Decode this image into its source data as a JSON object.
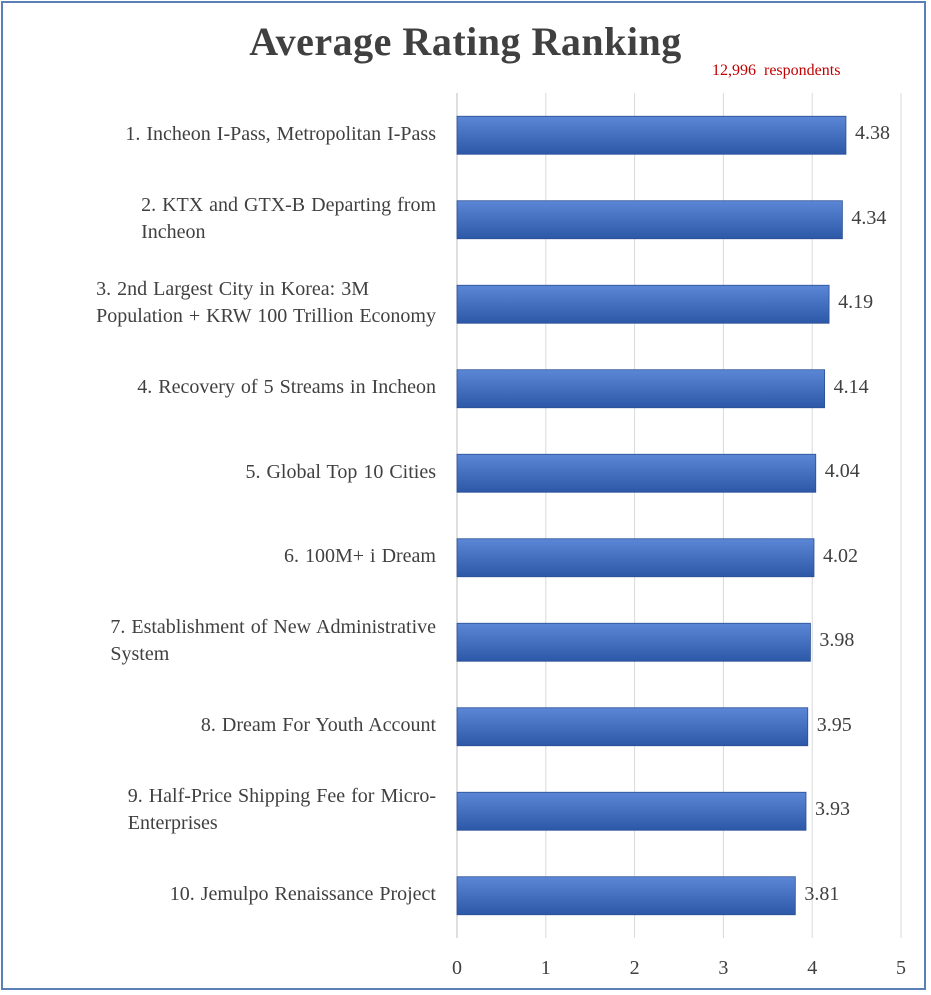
{
  "chart_data": {
    "type": "bar",
    "orientation": "horizontal",
    "title": "Average Rating Ranking",
    "annotation": "12,996  respondents",
    "categories": [
      "1. Incheon I-Pass, Metropolitan I-Pass",
      "2. KTX and GTX-B Departing from Incheon",
      "3. 2nd Largest City in Korea: 3M Population + KRW 100 Trillion Economy",
      "4. Recovery of 5 Streams in Incheon",
      "5. Global Top 10 Cities",
      "6. 100M+ i Dream",
      "7. Establishment of New Administrative System",
      "8. Dream For Youth Account",
      "9. Half-Price Shipping Fee for Micro-Enterprises",
      "10. Jemulpo Renaissance Project"
    ],
    "category_lines": [
      [
        "1. Incheon I-Pass, Metropolitan I-Pass"
      ],
      [
        "2. KTX and GTX-B Departing from",
        "Incheon"
      ],
      [
        "3. 2nd Largest City in Korea: 3M",
        "Population + KRW 100 Trillion Economy"
      ],
      [
        "4. Recovery of 5 Streams in Incheon"
      ],
      [
        "5. Global Top 10 Cities"
      ],
      [
        "6. 100M+ i Dream"
      ],
      [
        "7. Establishment of New Administrative",
        "System"
      ],
      [
        "8. Dream For Youth Account"
      ],
      [
        "9. Half-Price Shipping Fee for Micro-",
        "Enterprises"
      ],
      [
        "10. Jemulpo Renaissance Project"
      ]
    ],
    "values": [
      4.38,
      4.34,
      4.19,
      4.14,
      4.04,
      4.02,
      3.98,
      3.95,
      3.93,
      3.81
    ],
    "value_labels": [
      "4.38",
      "4.34",
      "4.19",
      "4.14",
      "4.04",
      "4.02",
      "3.98",
      "3.95",
      "3.93",
      "3.81"
    ],
    "xlim": [
      0,
      5
    ],
    "xticks": [
      0,
      1,
      2,
      3,
      4,
      5
    ],
    "xtick_labels": [
      "0",
      "1",
      "2",
      "3",
      "4",
      "5"
    ],
    "grid": true,
    "legend": "none",
    "colors": {
      "bar_top": "#5b87d6",
      "bar_bottom": "#2d58a8",
      "grid": "#d9d9d9",
      "border": "#5b7fb7"
    }
  }
}
